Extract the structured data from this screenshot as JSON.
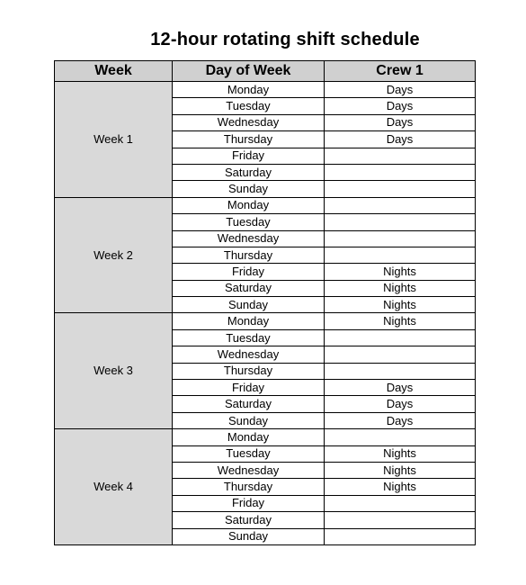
{
  "title": "12-hour rotating shift schedule",
  "headers": {
    "week": "Week",
    "day": "Day of Week",
    "crew": "Crew 1"
  },
  "weeks": [
    {
      "label": "Week 1",
      "days": [
        {
          "day": "Monday",
          "shift": "Days"
        },
        {
          "day": "Tuesday",
          "shift": "Days"
        },
        {
          "day": "Wednesday",
          "shift": "Days"
        },
        {
          "day": "Thursday",
          "shift": "Days"
        },
        {
          "day": "Friday",
          "shift": ""
        },
        {
          "day": "Saturday",
          "shift": ""
        },
        {
          "day": "Sunday",
          "shift": ""
        }
      ]
    },
    {
      "label": "Week 2",
      "days": [
        {
          "day": "Monday",
          "shift": ""
        },
        {
          "day": "Tuesday",
          "shift": ""
        },
        {
          "day": "Wednesday",
          "shift": ""
        },
        {
          "day": "Thursday",
          "shift": ""
        },
        {
          "day": "Friday",
          "shift": "Nights"
        },
        {
          "day": "Saturday",
          "shift": "Nights"
        },
        {
          "day": "Sunday",
          "shift": "Nights"
        }
      ]
    },
    {
      "label": "Week 3",
      "days": [
        {
          "day": "Monday",
          "shift": "Nights"
        },
        {
          "day": "Tuesday",
          "shift": ""
        },
        {
          "day": "Wednesday",
          "shift": ""
        },
        {
          "day": "Thursday",
          "shift": ""
        },
        {
          "day": "Friday",
          "shift": "Days"
        },
        {
          "day": "Saturday",
          "shift": "Days"
        },
        {
          "day": "Sunday",
          "shift": "Days"
        }
      ]
    },
    {
      "label": "Week 4",
      "days": [
        {
          "day": "Monday",
          "shift": ""
        },
        {
          "day": "Tuesday",
          "shift": "Nights"
        },
        {
          "day": "Wednesday",
          "shift": "Nights"
        },
        {
          "day": "Thursday",
          "shift": "Nights"
        },
        {
          "day": "Friday",
          "shift": ""
        },
        {
          "day": "Saturday",
          "shift": ""
        },
        {
          "day": "Sunday",
          "shift": ""
        }
      ]
    }
  ]
}
